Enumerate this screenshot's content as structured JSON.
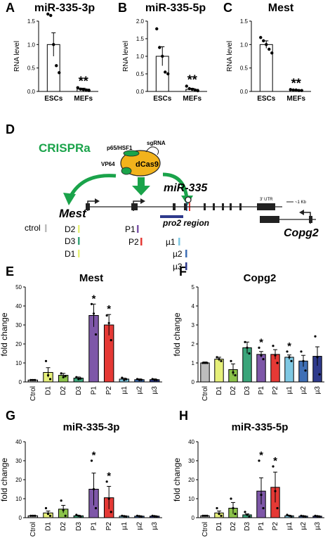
{
  "panel_letters": [
    "A",
    "B",
    "C",
    "D",
    "E",
    "F",
    "G",
    "H"
  ],
  "colors": {
    "gray": "#bdbdbd",
    "yellow": "#e6f07a",
    "lightgreen": "#8bc34a",
    "teal": "#3aa57a",
    "purple": "#7e57a8",
    "red": "#e53935",
    "lightblue": "#7ec8e3",
    "blue": "#3f6fb6",
    "navy": "#2e3a8c",
    "green": "#1aa34a",
    "cas9": "#f2b31c"
  },
  "top_charts": {
    "ylabel": "RNA level",
    "categories": [
      "ESCs",
      "MEFs"
    ],
    "sig": "**"
  },
  "diagram": {
    "crispra": "CRISPRa",
    "p65": "p65/HSF1",
    "sgrna": "sgRNA",
    "vp64": "VP64",
    "dcas9": "dCas9",
    "mir335": "miR-335",
    "mest": "Mest",
    "utr": "3' UTR",
    "scale": "~1 Kb",
    "pro2": "pro2 region",
    "copg2": "Copg2",
    "guides": {
      "ctrol": "ctrol",
      "d2": "D2",
      "d3": "D3",
      "d1": "D1",
      "p1": "P1",
      "p2": "P2",
      "u1": "µ1",
      "u2": "µ2",
      "u3": "µ3"
    }
  },
  "bottom_charts": {
    "ylabel": "fold change",
    "categories": [
      "Ctrol",
      "D1",
      "D2",
      "D3",
      "P1",
      "P2",
      "µ1",
      "µ2",
      "µ3"
    ]
  },
  "chart_data": [
    {
      "id": "A",
      "type": "bar",
      "title": "miR-335-3p",
      "ylabel": "RNA level",
      "categories": [
        "ESCs",
        "MEFs"
      ],
      "values": [
        1.0,
        0.05
      ],
      "errors": [
        0.25,
        0.02
      ],
      "ylim": [
        0,
        1.5
      ],
      "yticks": [
        0.0,
        0.5,
        1.0,
        1.5
      ],
      "annotations": [
        {
          "category": "MEFs",
          "text": "**"
        }
      ],
      "points": [
        [
          1.65,
          1.62,
          1.0,
          0.55,
          0.4
        ],
        [
          0.08,
          0.05,
          0.04,
          0.03,
          0.02
        ]
      ]
    },
    {
      "id": "B",
      "type": "bar",
      "title": "miR-335-5p",
      "ylabel": "RNA level",
      "categories": [
        "ESCs",
        "MEFs"
      ],
      "values": [
        1.0,
        0.06
      ],
      "errors": [
        0.27,
        0.03
      ],
      "ylim": [
        0,
        2.0
      ],
      "yticks": [
        0.0,
        0.5,
        1.0,
        1.5,
        2.0
      ],
      "annotations": [
        {
          "category": "MEFs",
          "text": "**"
        }
      ],
      "points": [
        [
          1.78,
          1.25,
          1.0,
          0.55,
          0.5
        ],
        [
          0.15,
          0.08,
          0.06,
          0.04,
          0.02
        ]
      ]
    },
    {
      "id": "C",
      "type": "bar",
      "title": "Mest",
      "ylabel": "RNA level",
      "categories": [
        "ESCs",
        "MEFs"
      ],
      "values": [
        1.0,
        0.03
      ],
      "errors": [
        0.08,
        0.01
      ],
      "ylim": [
        0,
        1.5
      ],
      "yticks": [
        0.0,
        0.5,
        1.0,
        1.5
      ],
      "annotations": [
        {
          "category": "MEFs",
          "text": "**"
        }
      ],
      "points": [
        [
          1.15,
          1.08,
          1.0,
          0.9,
          0.82
        ],
        [
          0.04,
          0.03,
          0.03,
          0.02,
          0.02
        ]
      ]
    },
    {
      "id": "E",
      "type": "bar",
      "title": "Mest",
      "ylabel": "fold change",
      "categories": [
        "Ctrol",
        "D1",
        "D2",
        "D3",
        "P1",
        "P2",
        "µ1",
        "µ2",
        "µ3"
      ],
      "values": [
        1,
        5,
        3.5,
        2,
        35,
        30,
        1.5,
        1.2,
        1.2
      ],
      "errors": [
        0.3,
        2.5,
        1,
        0.6,
        6,
        5.5,
        0.5,
        0.4,
        0.4
      ],
      "ylim": [
        0,
        50
      ],
      "yticks": [
        0,
        10,
        20,
        30,
        40,
        50
      ],
      "annotations": [
        {
          "category": "P1",
          "text": "*"
        },
        {
          "category": "P2",
          "text": "*"
        }
      ],
      "points": [
        [
          1,
          1,
          1
        ],
        [
          11,
          3.5,
          1.5
        ],
        [
          4.5,
          2.5,
          3
        ],
        [
          2.5,
          1.5,
          1.8
        ],
        [
          41,
          36,
          25
        ],
        [
          35,
          31,
          22
        ],
        [
          2.2,
          1,
          1.4
        ],
        [
          1.5,
          1,
          1.1
        ],
        [
          1.5,
          1,
          1
        ]
      ]
    },
    {
      "id": "F",
      "type": "bar",
      "title": "Copg2",
      "ylabel": "fold change",
      "categories": [
        "Ctrol",
        "D1",
        "D2",
        "D3",
        "P1",
        "P2",
        "µ1",
        "µ2",
        "µ3"
      ],
      "values": [
        1,
        1.2,
        0.65,
        1.8,
        1.45,
        1.45,
        1.3,
        1.1,
        1.35
      ],
      "errors": [
        0.05,
        0.1,
        0.3,
        0.3,
        0.15,
        0.25,
        0.12,
        0.3,
        0.5
      ],
      "ylim": [
        0,
        5
      ],
      "yticks": [
        0,
        1,
        2,
        3,
        4,
        5
      ],
      "annotations": [
        {
          "category": "P1",
          "text": "*"
        },
        {
          "category": "µ1",
          "text": "*"
        }
      ],
      "points": [
        [
          1,
          1,
          1
        ],
        [
          1.3,
          1.2,
          1.1
        ],
        [
          1.1,
          0.5,
          0.35
        ],
        [
          2.1,
          1.8,
          1.5
        ],
        [
          1.8,
          1.4,
          1.2
        ],
        [
          1.9,
          1.4,
          1.0
        ],
        [
          1.6,
          1.3,
          1.1
        ],
        [
          1.6,
          1.1,
          0.6
        ],
        [
          2.4,
          1.3,
          0.4
        ]
      ]
    },
    {
      "id": "G",
      "type": "bar",
      "title": "miR-335-3p",
      "ylabel": "fold change",
      "categories": [
        "Ctrol",
        "D1",
        "D2",
        "D3",
        "P1",
        "P2",
        "µ1",
        "µ2",
        "µ3"
      ],
      "values": [
        1,
        2.5,
        4.5,
        1,
        15,
        10.5,
        0.8,
        0.8,
        0.8
      ],
      "errors": [
        0.2,
        1,
        2,
        0.3,
        8.5,
        6,
        0.2,
        0.2,
        0.2
      ],
      "ylim": [
        0,
        40
      ],
      "yticks": [
        0,
        10,
        20,
        30,
        40
      ],
      "annotations": [
        {
          "category": "P1",
          "text": "*"
        },
        {
          "category": "P2",
          "text": "*"
        }
      ],
      "points": [
        [
          1,
          1,
          1
        ],
        [
          5,
          2,
          1
        ],
        [
          9,
          4,
          1
        ],
        [
          1.5,
          1,
          0.5
        ],
        [
          30,
          15,
          5
        ],
        [
          19,
          10,
          3
        ],
        [
          1,
          0.8,
          0.6
        ],
        [
          1,
          0.8,
          0.6
        ],
        [
          1,
          0.8,
          0.6
        ]
      ]
    },
    {
      "id": "H",
      "type": "bar",
      "title": "miR-335-5p",
      "ylabel": "fold change",
      "categories": [
        "Ctrol",
        "D1",
        "D2",
        "D3",
        "P1",
        "P2",
        "µ1",
        "µ2",
        "µ3"
      ],
      "values": [
        1,
        2.5,
        5,
        1.5,
        14,
        16,
        1,
        0.8,
        0.8
      ],
      "errors": [
        0.2,
        1,
        3,
        0.5,
        7,
        8,
        0.3,
        0.2,
        0.2
      ],
      "ylim": [
        0,
        40
      ],
      "yticks": [
        0,
        10,
        20,
        30,
        40
      ],
      "annotations": [
        {
          "category": "P1",
          "text": "*"
        },
        {
          "category": "P2",
          "text": "*"
        }
      ],
      "points": [
        [
          1,
          1,
          1
        ],
        [
          5,
          2,
          1
        ],
        [
          10,
          5,
          2
        ],
        [
          3,
          1.5,
          0.5
        ],
        [
          30,
          12,
          5
        ],
        [
          27,
          14,
          5
        ],
        [
          1.5,
          1,
          0.5
        ],
        [
          1,
          0.8,
          0.6
        ],
        [
          1,
          0.8,
          0.6
        ]
      ]
    }
  ]
}
